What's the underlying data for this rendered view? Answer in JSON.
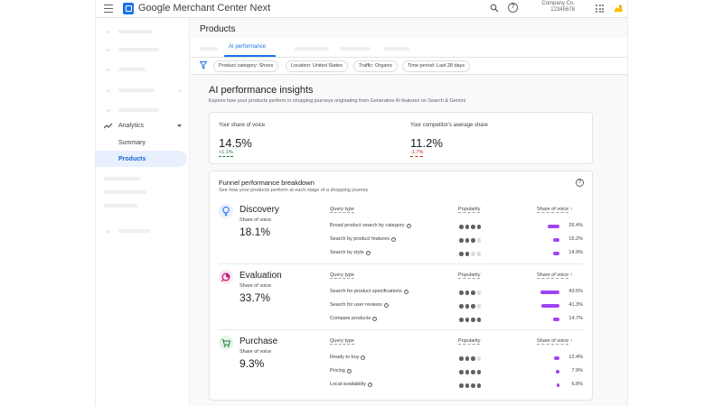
{
  "header": {
    "app_title": "Google Merchant Center Next",
    "company_name": "Company Co.",
    "company_id": "12345678"
  },
  "sidebar": {
    "section_label": "Analytics",
    "items": [
      {
        "label": "Summary",
        "active": false
      },
      {
        "label": "Products",
        "active": true
      }
    ]
  },
  "page": {
    "title": "Products",
    "active_tab": "AI performance"
  },
  "filters": [
    "Product category: Shoes",
    "Location: United States",
    "Traffic: Organic",
    "Time period: Last 28 days"
  ],
  "insights": {
    "title": "AI performance insights",
    "description": "Explore how your products perform in shopping journeys originating from Generative AI features on Search & Gemini"
  },
  "share_of_voice": {
    "yours": {
      "label": "Your share of voice",
      "value": "14.5%",
      "delta": "+1.1%"
    },
    "competitors": {
      "label": "Your competitor's average share",
      "value": "11.2%",
      "delta": "-1.7%"
    }
  },
  "funnel": {
    "title": "Funnel performance breakdown",
    "description": "See how your products perform at each stage of a shopping journey",
    "column_query": "Query type",
    "column_popularity": "Popularity",
    "column_sov": "Share of voice",
    "sov_label": "Share of voice",
    "stages": [
      {
        "name": "Discovery",
        "sov": "18.1%",
        "icon": "lightbulb-icon",
        "icon_color": "#1a73e8",
        "icon_bg": "#e8f0fe",
        "queries": [
          {
            "label": "Broad product search by category",
            "help": true,
            "popularity": 4,
            "share": 26.4,
            "share_label": "26.4%"
          },
          {
            "label": "Search by product features",
            "help": true,
            "popularity": 3,
            "share": 15.2,
            "share_label": "15.2%"
          },
          {
            "label": "Search by style",
            "help": true,
            "popularity": 2,
            "share": 14.9,
            "share_label": "14.9%"
          }
        ]
      },
      {
        "name": "Evaluation",
        "sov": "33.7%",
        "icon": "compare-icon",
        "icon_color": "#c5157c",
        "icon_bg": "#fce8f3",
        "queries": [
          {
            "label": "Search for product specifications",
            "help": true,
            "popularity": 3,
            "share": 43.5,
            "share_label": "43.5%"
          },
          {
            "label": "Search for user reviews",
            "help": true,
            "popularity": 3,
            "share": 41.3,
            "share_label": "41.3%"
          },
          {
            "label": "Compare products",
            "help": true,
            "popularity": 4,
            "share": 14.7,
            "share_label": "14.7%"
          }
        ]
      },
      {
        "name": "Purchase",
        "sov": "9.3%",
        "icon": "cart-icon",
        "icon_color": "#188038",
        "icon_bg": "#e6f4ea",
        "queries": [
          {
            "label": "Ready to buy",
            "help": true,
            "popularity": 3,
            "share": 12.4,
            "share_label": "12.4%"
          },
          {
            "label": "Pricing",
            "help": true,
            "popularity": 4,
            "share": 7.9,
            "share_label": "7.9%"
          },
          {
            "label": "Local availability",
            "help": true,
            "popularity": 4,
            "share": 6.8,
            "share_label": "6.8%"
          }
        ]
      }
    ]
  }
}
